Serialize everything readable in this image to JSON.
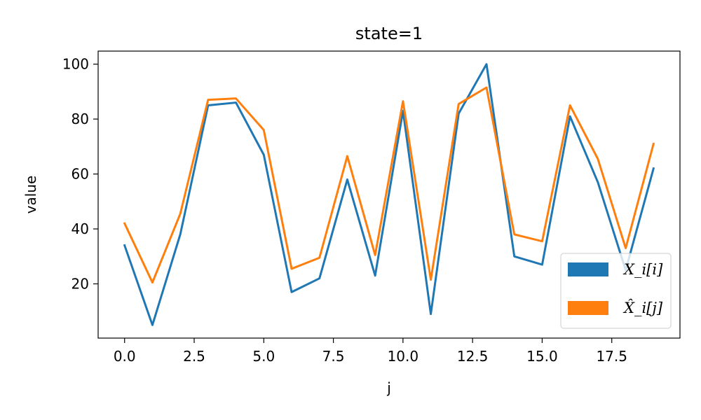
{
  "chart_data": {
    "type": "line",
    "title": "state=1",
    "xlabel": "j",
    "ylabel": "value",
    "xlim": [
      -0.95,
      19.95
    ],
    "ylim": [
      0.25,
      104.75
    ],
    "xticks": [
      0.0,
      2.5,
      5.0,
      7.5,
      10.0,
      12.5,
      15.0,
      17.5
    ],
    "xtick_labels": [
      "0.0",
      "2.5",
      "5.0",
      "7.5",
      "10.0",
      "12.5",
      "15.0",
      "17.5"
    ],
    "yticks": [
      20,
      40,
      60,
      80,
      100
    ],
    "ytick_labels": [
      "20",
      "40",
      "60",
      "80",
      "100"
    ],
    "grid": false,
    "legend_position": "lower-right",
    "x": [
      0,
      1,
      2,
      3,
      4,
      5,
      6,
      7,
      8,
      9,
      10,
      11,
      12,
      13,
      14,
      15,
      16,
      17,
      18,
      19
    ],
    "series": [
      {
        "name": "X_i[i]",
        "color": "#1f77b4",
        "values": [
          34,
          5,
          38,
          85,
          86,
          67,
          17,
          22,
          58,
          23,
          83,
          9,
          82,
          100,
          30,
          27,
          81,
          57,
          25,
          62
        ]
      },
      {
        "name": "X̂_i[j]",
        "color": "#ff7f0e",
        "values": [
          42,
          20.5,
          45.5,
          87,
          87.5,
          76,
          25.5,
          29.5,
          66.5,
          30.5,
          86.5,
          21.5,
          85.5,
          91.5,
          38,
          35.5,
          85,
          65.5,
          33,
          71
        ]
      }
    ]
  }
}
